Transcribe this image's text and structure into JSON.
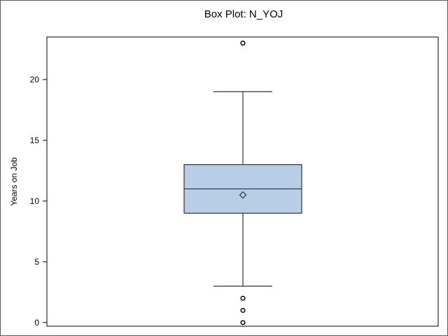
{
  "chart_data": {
    "type": "box",
    "title": "Box Plot: N_YOJ",
    "xlabel": "",
    "ylabel": "Years on Job",
    "ylim": [
      -0.3,
      23.5
    ],
    "yticks": [
      0,
      5,
      10,
      15,
      20
    ],
    "grid": false,
    "legend": "none",
    "box": {
      "whisker_low": 3,
      "q1": 9,
      "median": 11,
      "mean": 10.5,
      "q3": 13,
      "whisker_high": 19,
      "outliers": [
        0,
        1,
        2,
        23
      ]
    },
    "colors": {
      "box_fill": "#b8cde6",
      "line": "#333333",
      "axis": "#000000",
      "frame": "#5a5a5a"
    }
  }
}
